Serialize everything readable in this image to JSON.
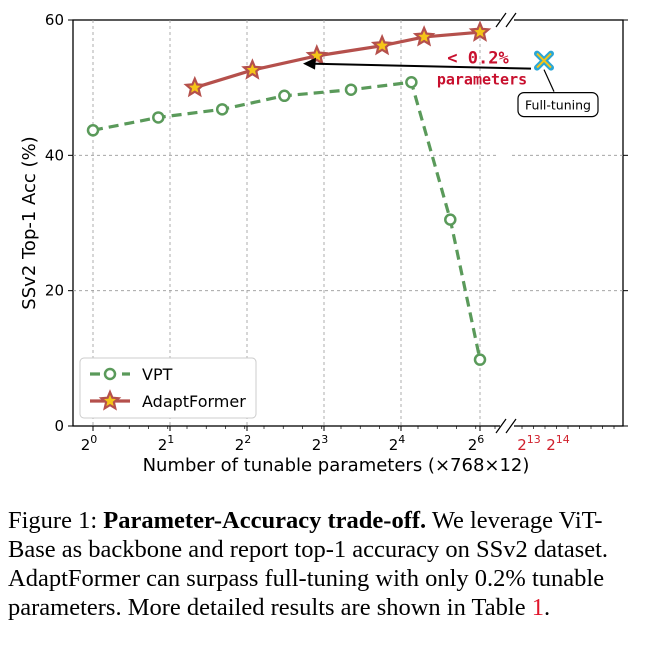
{
  "chart_data": {
    "type": "line",
    "xlabel": "Number of tunable parameters (×768×12)",
    "ylabel": "SSv2 Top-1 Acc (%)",
    "ylim": [
      0,
      60
    ],
    "yticks": [
      0,
      20,
      40,
      60
    ],
    "xticks_main": [
      {
        "base": "2",
        "exp": "0",
        "log2": 0
      },
      {
        "base": "2",
        "exp": "1",
        "log2": 1
      },
      {
        "base": "2",
        "exp": "2",
        "log2": 2
      },
      {
        "base": "2",
        "exp": "3",
        "log2": 3
      },
      {
        "base": "2",
        "exp": "4",
        "log2": 4
      },
      {
        "base": "2",
        "exp": "6",
        "log2": 6
      }
    ],
    "xticks_broken": [
      {
        "base": "2",
        "exp": "13",
        "log2": 13
      },
      {
        "base": "2",
        "exp": "14",
        "log2": 14
      }
    ],
    "x_scale": "log2 (broken axis)",
    "grid": true,
    "legend_position": "lower-left",
    "series": [
      {
        "name": "VPT",
        "color": "#5a9a5a",
        "style": "dashed",
        "marker": "circle",
        "points": [
          [
            1,
            43.7
          ],
          [
            1.8,
            45.6
          ],
          [
            3.2,
            46.8
          ],
          [
            5.6,
            48.8
          ],
          [
            10.2,
            49.7
          ],
          [
            19.2,
            50.8
          ],
          [
            38,
            30.5
          ],
          [
            64,
            9.8
          ]
        ]
      },
      {
        "name": "AdaptFormer",
        "color": "#b5504c",
        "style": "solid",
        "marker": "star",
        "points": [
          [
            2.5,
            50.0
          ],
          [
            4.2,
            52.6
          ],
          [
            7.5,
            54.7
          ],
          [
            13.5,
            56.2
          ],
          [
            24,
            57.5
          ],
          [
            64,
            58.2
          ]
        ]
      }
    ],
    "annotations": {
      "full_tuning": {
        "label": "Full-tuning",
        "y": 54.0
      },
      "arrow_top": "< 0.2%",
      "arrow_bottom": "parameters"
    }
  },
  "caption": {
    "figure_label": "Figure 1:",
    "bold_title": "Parameter-Accuracy trade-off.",
    "body": "We leverage ViT-Base as backbone and report top-1 accuracy on SSv2 dataset. AdaptFormer can surpass full-tuning with only 0.2% tunable parameters. More detailed results are shown in Table",
    "ref": "1",
    "end": "."
  },
  "colors": {
    "vpt": "#5a9a5a",
    "adaptformer": "#b5504c",
    "star_fill": "#f5c518",
    "arrow_text": "#c8102e",
    "full_tuning": "#2aa6d6"
  }
}
